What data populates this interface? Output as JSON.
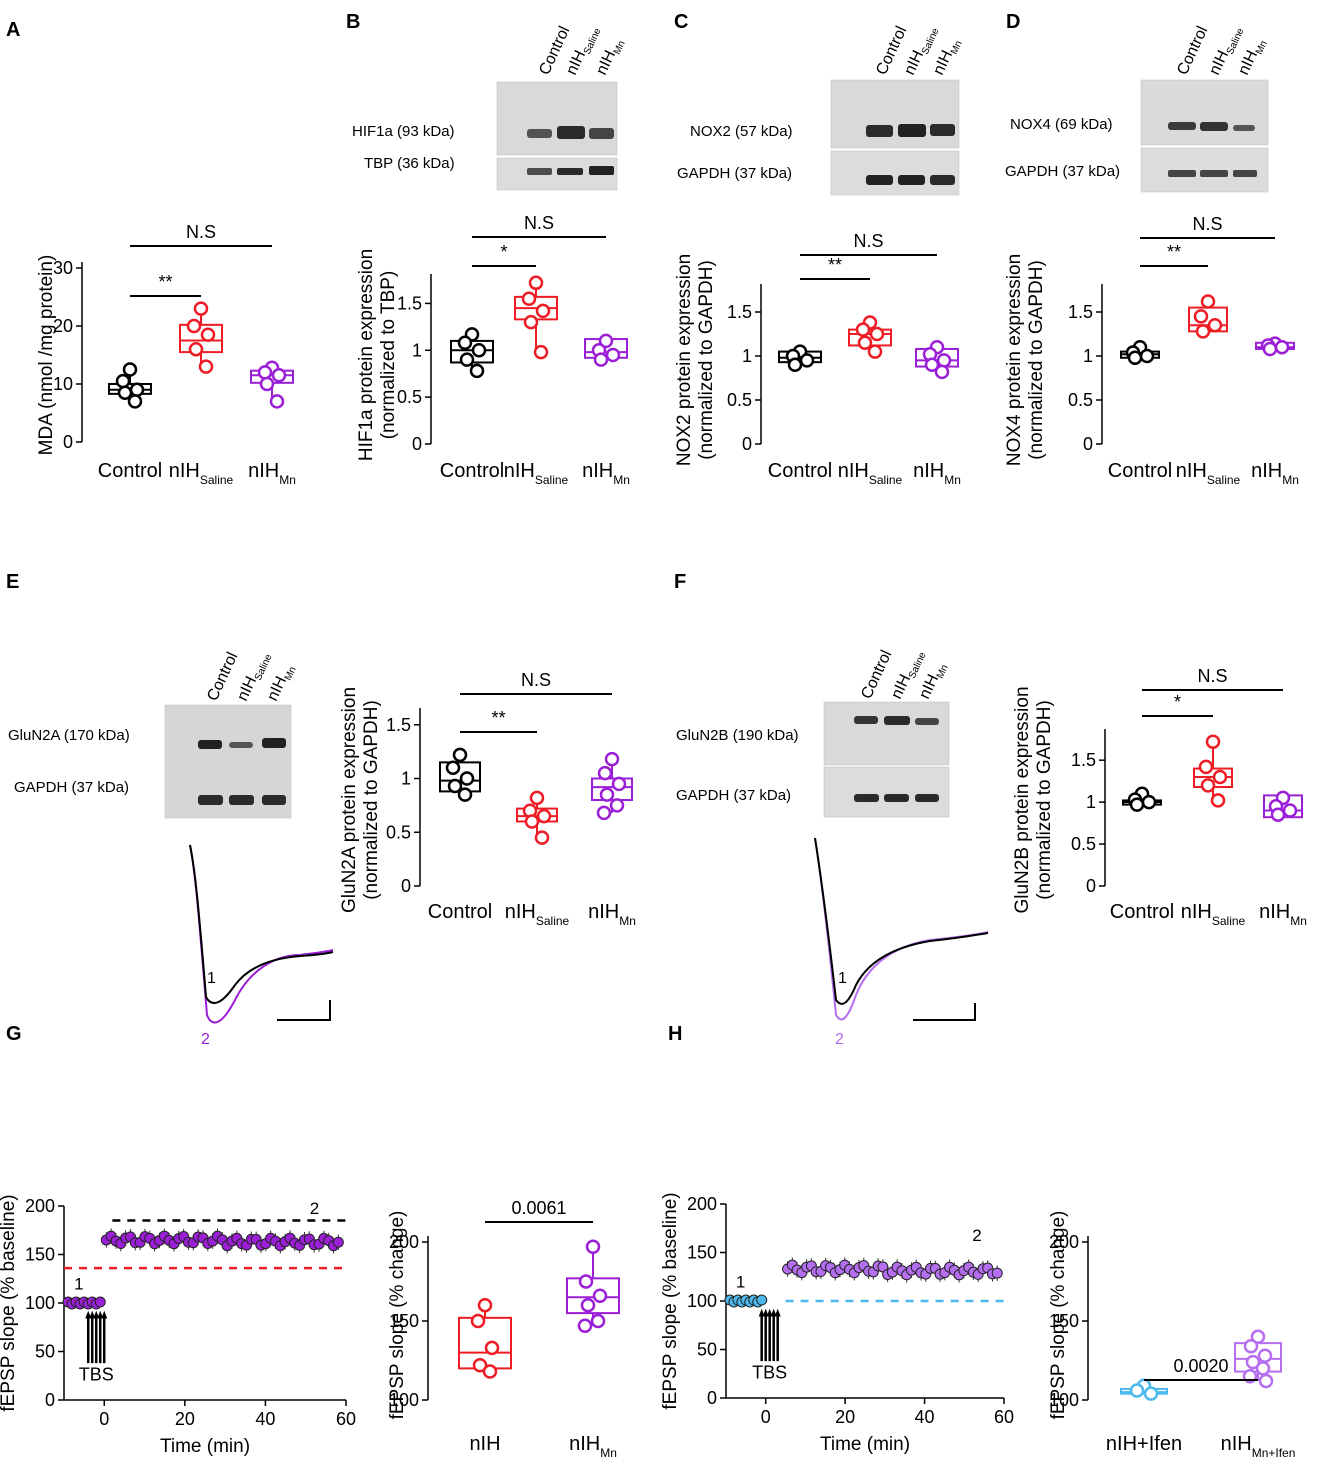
{
  "figure": {
    "panel_letters": [
      "A",
      "B",
      "C",
      "D",
      "E",
      "F",
      "G",
      "H"
    ],
    "x_labels": [
      "Control",
      "nIH",
      "nIH"
    ],
    "x_subs": [
      "",
      "Saline",
      "Mn"
    ],
    "blot_lanes": [
      "Control",
      "nIH",
      "nIH"
    ],
    "blot_subs": [
      "",
      "Saline",
      "Mn"
    ],
    "colors": {
      "control": "#000000",
      "saline": "#ee1c24",
      "mn": "#9b1fd6",
      "mn_light": "#b56ef0",
      "ifen": "#4db8ee",
      "band": "#2a2a2a"
    }
  },
  "blots": [
    {
      "id": "B",
      "labels": [
        "HIF1a (93 kDa)",
        "TBP (36 kDa)"
      ]
    },
    {
      "id": "C",
      "labels": [
        "NOX2 (57 kDa)",
        "GAPDH (37 kDa)"
      ]
    },
    {
      "id": "D",
      "labels": [
        "NOX4 (69 kDa)",
        "GAPDH (37 kDa)"
      ]
    },
    {
      "id": "E",
      "labels": [
        "GluN2A (170 kDa)",
        "GAPDH (37 kDa)"
      ]
    },
    {
      "id": "F",
      "labels": [
        "GluN2B (190 kDa)",
        "GAPDH (37 kDa)"
      ]
    }
  ],
  "chart_data": [
    {
      "panel": "A",
      "type": "box",
      "ylabel": "MDA (nmol /mg protein)",
      "ylim": [
        0,
        30
      ],
      "yticks": [
        0,
        10,
        20,
        30
      ],
      "categories": [
        "Control",
        "nIH Saline",
        "nIH Mn"
      ],
      "series": [
        {
          "name": "Control",
          "q1": 8.3,
          "median": 9.0,
          "q3": 10.0,
          "min": 7.0,
          "max": 12.5,
          "points": [
            12.5,
            10.5,
            9.0,
            8.5,
            7.0
          ]
        },
        {
          "name": "nIH Saline",
          "q1": 15.5,
          "median": 17.5,
          "q3": 20.2,
          "min": 13.0,
          "max": 23.0,
          "points": [
            23.0,
            20.0,
            18.5,
            16.0,
            13.0
          ]
        },
        {
          "name": "nIH Mn",
          "q1": 10.2,
          "median": 11.5,
          "q3": 12.3,
          "min": 7.0,
          "max": 13.0,
          "points": [
            12.8,
            12.0,
            11.5,
            10.0,
            7.0
          ]
        }
      ],
      "annotations": [
        {
          "pair": [
            0,
            1
          ],
          "label": "**"
        },
        {
          "pair": [
            0,
            2
          ],
          "label": "N.S"
        }
      ]
    },
    {
      "panel": "B",
      "type": "box",
      "ylabel": "HIF1a protein expression",
      "ylabel2": "(normalized to TBP)",
      "ylim": [
        0,
        1.75
      ],
      "yticks": [
        0,
        0.5,
        1.0,
        1.5
      ],
      "categories": [
        "Control",
        "nIH Saline",
        "nIH Mn"
      ],
      "series": [
        {
          "name": "Control",
          "q1": 0.87,
          "median": 1.0,
          "q3": 1.1,
          "min": 0.78,
          "max": 1.17,
          "points": [
            1.17,
            1.08,
            1.0,
            0.9,
            0.78
          ]
        },
        {
          "name": "nIH Saline",
          "q1": 1.33,
          "median": 1.45,
          "q3": 1.57,
          "min": 0.98,
          "max": 1.72,
          "points": [
            1.72,
            1.55,
            1.42,
            1.3,
            0.98
          ]
        },
        {
          "name": "nIH Mn",
          "q1": 0.92,
          "median": 0.98,
          "q3": 1.12,
          "min": 0.9,
          "max": 1.12,
          "points": [
            1.1,
            1.0,
            0.95,
            0.9
          ]
        }
      ],
      "annotations": [
        {
          "pair": [
            0,
            1
          ],
          "label": "*"
        },
        {
          "pair": [
            0,
            2
          ],
          "label": "N.S"
        }
      ]
    },
    {
      "panel": "C",
      "type": "box",
      "ylabel": "NOX2 protein expression",
      "ylabel2": "(normalized to GAPDH)",
      "ylim": [
        0,
        1.75
      ],
      "yticks": [
        0,
        0.5,
        1.0,
        1.5
      ],
      "categories": [
        "Control",
        "nIH Saline",
        "nIH Mn"
      ],
      "series": [
        {
          "name": "Control",
          "q1": 0.93,
          "median": 0.98,
          "q3": 1.05,
          "min": 0.9,
          "max": 1.05,
          "points": [
            1.05,
            1.0,
            0.95,
            0.9
          ]
        },
        {
          "name": "nIH Saline",
          "q1": 1.12,
          "median": 1.25,
          "q3": 1.3,
          "min": 1.05,
          "max": 1.38,
          "points": [
            1.38,
            1.3,
            1.25,
            1.15,
            1.05
          ]
        },
        {
          "name": "nIH Mn",
          "q1": 0.88,
          "median": 0.95,
          "q3": 1.08,
          "min": 0.82,
          "max": 1.1,
          "points": [
            1.1,
            1.02,
            0.95,
            0.9,
            0.82
          ]
        }
      ],
      "annotations": [
        {
          "pair": [
            0,
            1
          ],
          "label": "**"
        },
        {
          "pair": [
            0,
            2
          ],
          "label": "N.S"
        }
      ]
    },
    {
      "panel": "D",
      "type": "box",
      "ylabel": "NOX4 protein expression",
      "ylabel2": "(normalized to GAPDH)",
      "ylim": [
        0,
        1.75
      ],
      "yticks": [
        0,
        0.5,
        1.0,
        1.5
      ],
      "categories": [
        "Control",
        "nIH Saline",
        "nIH Mn"
      ],
      "series": [
        {
          "name": "Control",
          "q1": 0.98,
          "median": 1.02,
          "q3": 1.05,
          "min": 0.97,
          "max": 1.1,
          "points": [
            1.1,
            1.04,
            1.0,
            0.98
          ]
        },
        {
          "name": "nIH Saline",
          "q1": 1.28,
          "median": 1.35,
          "q3": 1.55,
          "min": 1.25,
          "max": 1.62,
          "points": [
            1.62,
            1.45,
            1.35,
            1.28
          ]
        },
        {
          "name": "nIH Mn",
          "q1": 1.08,
          "median": 1.1,
          "q3": 1.15,
          "min": 1.08,
          "max": 1.15,
          "points": [
            1.14,
            1.12,
            1.1,
            1.08
          ]
        }
      ],
      "annotations": [
        {
          "pair": [
            0,
            1
          ],
          "label": "**"
        },
        {
          "pair": [
            0,
            2
          ],
          "label": "N.S"
        }
      ]
    },
    {
      "panel": "E",
      "type": "box",
      "ylabel": "GluN2A protein expression",
      "ylabel2": "(normalized to GAPDH)",
      "ylim": [
        0,
        1.6
      ],
      "yticks": [
        0,
        0.5,
        1.0,
        1.5
      ],
      "categories": [
        "Control",
        "nIH Saline",
        "nIH Mn"
      ],
      "series": [
        {
          "name": "Control",
          "q1": 0.88,
          "median": 0.98,
          "q3": 1.15,
          "min": 0.85,
          "max": 1.22,
          "points": [
            1.22,
            1.1,
            1.0,
            0.93,
            0.85
          ]
        },
        {
          "name": "nIH Saline",
          "q1": 0.6,
          "median": 0.65,
          "q3": 0.72,
          "min": 0.45,
          "max": 0.82,
          "points": [
            0.82,
            0.7,
            0.65,
            0.6,
            0.45
          ]
        },
        {
          "name": "nIH Mn",
          "q1": 0.8,
          "median": 0.92,
          "q3": 1.0,
          "min": 0.68,
          "max": 1.18,
          "points": [
            1.18,
            1.05,
            0.95,
            0.85,
            0.75,
            0.68
          ]
        }
      ],
      "annotations": [
        {
          "pair": [
            0,
            1
          ],
          "label": "**"
        },
        {
          "pair": [
            0,
            2
          ],
          "label": "N.S"
        }
      ]
    },
    {
      "panel": "F",
      "type": "box",
      "ylabel": "GluN2B protein expression",
      "ylabel2": "(normalized to GAPDH)",
      "ylim": [
        0,
        1.8
      ],
      "yticks": [
        0,
        0.5,
        1.0,
        1.5
      ],
      "categories": [
        "Control",
        "nIH Saline",
        "nIH Mn"
      ],
      "series": [
        {
          "name": "Control",
          "q1": 0.97,
          "median": 1.0,
          "q3": 1.02,
          "min": 0.95,
          "max": 1.1,
          "points": [
            1.1,
            1.03,
            1.0,
            0.97
          ]
        },
        {
          "name": "nIH Saline",
          "q1": 1.18,
          "median": 1.3,
          "q3": 1.4,
          "min": 1.02,
          "max": 1.72,
          "points": [
            1.72,
            1.42,
            1.3,
            1.2,
            1.02
          ]
        },
        {
          "name": "nIH Mn",
          "q1": 0.82,
          "median": 0.9,
          "q3": 1.08,
          "min": 0.82,
          "max": 1.08,
          "points": [
            1.05,
            0.95,
            0.9,
            0.85
          ]
        }
      ],
      "annotations": [
        {
          "pair": [
            0,
            1
          ],
          "label": "*"
        },
        {
          "pair": [
            0,
            2
          ],
          "label": "N.S"
        }
      ]
    },
    {
      "panel": "G-time",
      "type": "scatter",
      "xlabel": "Time (min)",
      "ylabel": "fEPSP slope  (% baseline)",
      "xlim": [
        -10,
        60
      ],
      "ylim": [
        0,
        200
      ],
      "xticks": [
        0,
        20,
        40,
        60
      ],
      "yticks": [
        0,
        50,
        100,
        150,
        200
      ],
      "baseline": 100,
      "post_level": 165,
      "black_dashed": 185,
      "red_dashed": 136,
      "series": [
        {
          "name": "nIH Mn",
          "x_start": -9,
          "x_end": 59
        }
      ],
      "annotations": [
        "1",
        "2",
        "TBS"
      ]
    },
    {
      "panel": "G-box",
      "type": "box",
      "ylabel": "fEPSP slope (% change)",
      "ylim": [
        100,
        200
      ],
      "yticks": [
        100,
        150,
        200
      ],
      "categories": [
        "nIH",
        "nIH Mn"
      ],
      "series": [
        {
          "name": "nIH",
          "q1": 120,
          "median": 130,
          "q3": 152,
          "min": 118,
          "max": 160,
          "points": [
            160,
            150,
            133,
            122,
            118
          ]
        },
        {
          "name": "nIH Mn",
          "q1": 155,
          "median": 165,
          "q3": 177,
          "min": 147,
          "max": 197,
          "points": [
            197,
            175,
            166,
            160,
            150,
            147
          ]
        }
      ],
      "annotations": [
        {
          "pair": [
            0,
            1
          ],
          "label": "0.0061"
        }
      ]
    },
    {
      "panel": "H-time",
      "type": "scatter",
      "xlabel": "Time (min)",
      "ylabel": "fEPSP slope  (% baseline)",
      "xlim": [
        -10,
        60
      ],
      "ylim": [
        0,
        200
      ],
      "xticks": [
        0,
        20,
        40,
        60
      ],
      "yticks": [
        0,
        50,
        100,
        150,
        200
      ],
      "baseline": 100,
      "post_level": 133,
      "blue_dashed": 100,
      "series": [
        {
          "name": "nIH Mn+Ifen",
          "x_start": -9,
          "x_end": 59
        }
      ],
      "annotations": [
        "1",
        "2",
        "TBS"
      ]
    },
    {
      "panel": "H-box",
      "type": "box",
      "ylabel": "fEPSP slope (% change)",
      "ylim": [
        100,
        200
      ],
      "yticks": [
        100,
        150,
        200
      ],
      "categories": [
        "nIH+Ifen",
        "nIH Mn+Ifen"
      ],
      "series": [
        {
          "name": "nIH+Ifen",
          "q1": 104,
          "median": 105,
          "q3": 107,
          "min": 104,
          "max": 109,
          "points": [
            109,
            106,
            104
          ]
        },
        {
          "name": "nIH Mn+Ifen",
          "q1": 118,
          "median": 126,
          "q3": 136,
          "min": 112,
          "max": 140,
          "points": [
            140,
            134,
            128,
            124,
            120,
            115,
            112
          ]
        }
      ],
      "annotations": [
        {
          "pair": [
            0,
            1
          ],
          "label": "0.0020"
        }
      ]
    }
  ]
}
